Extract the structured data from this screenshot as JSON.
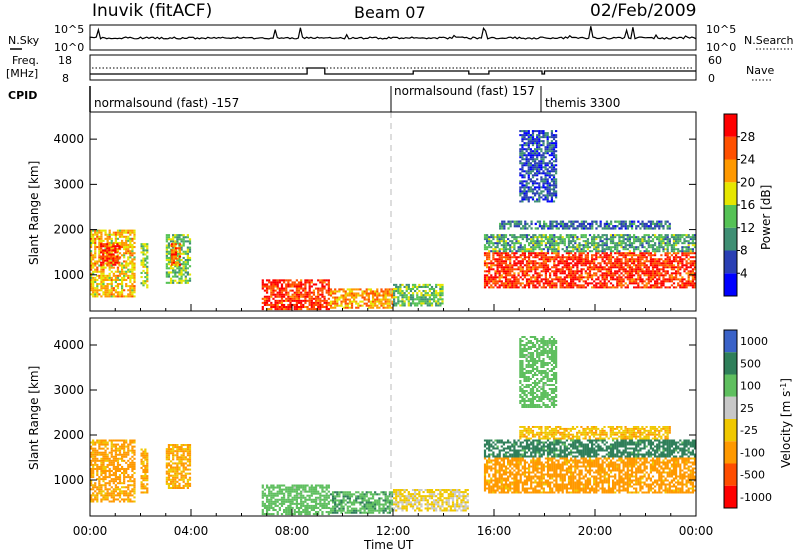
{
  "header": {
    "station": "Inuvik (fitACF)",
    "beam": "Beam 07",
    "date": "02/Feb/2009"
  },
  "summary_panels": {
    "nsky": {
      "label": "N.Sky",
      "ticks": [
        "10^5",
        "10^0"
      ]
    },
    "nsearch": {
      "label": "N.Search",
      "ticks": [
        "10^5",
        "10^0"
      ]
    },
    "freq": {
      "label_line1": "Freq.",
      "label_line2": "[MHz]",
      "ticks": [
        "18",
        "8"
      ]
    },
    "nave": {
      "label": "Nave",
      "ticks": [
        "60",
        "0"
      ]
    },
    "cpid": {
      "label": "CPID",
      "segments": [
        {
          "name": "normalsound (fast) -157",
          "start_hour": 0,
          "end_hour": 12
        },
        {
          "name": "normalsound (fast) 157",
          "start_hour": 12,
          "end_hour": 18
        },
        {
          "name": "themis 3300",
          "start_hour": 18,
          "end_hour": 24
        }
      ]
    }
  },
  "colors": {
    "power_scale": [
      "#0000ff",
      "#2a3fb4",
      "#3f8f74",
      "#55c255",
      "#e6e600",
      "#ff9900",
      "#ff5000",
      "#ff0000"
    ],
    "velocity_scale": [
      "#3a62c8",
      "#2f7f5a",
      "#5fbf5f",
      "#c8c8c8",
      "#f0c800",
      "#ff9900",
      "#ff4d00",
      "#ff0000"
    ],
    "background": "#ffffff"
  },
  "chart_data": [
    {
      "type": "heatmap",
      "panel": "power",
      "ylabel": "Slant Range [km]",
      "xlabel": "",
      "x_ticks": [
        "00:00",
        "04:00",
        "08:00",
        "12:00",
        "16:00",
        "20:00",
        "00:00"
      ],
      "y_ticks": [
        "1000",
        "2000",
        "3000",
        "4000"
      ],
      "ylim": [
        200,
        4600
      ],
      "xlim": [
        0,
        24
      ],
      "colorbar": {
        "label": "Power [dB]",
        "ticks": [
          "4",
          "8",
          "12",
          "16",
          "20",
          "24",
          "28"
        ],
        "range": [
          0,
          32
        ]
      },
      "regions": [
        {
          "t0": 0.0,
          "t1": 1.8,
          "r0": 500,
          "r1": 2000,
          "level": 20
        },
        {
          "t0": 0.4,
          "t1": 1.2,
          "r0": 1200,
          "r1": 1700,
          "level": 28
        },
        {
          "t0": 2.0,
          "t1": 2.3,
          "r0": 700,
          "r1": 1700,
          "level": 16
        },
        {
          "t0": 3.0,
          "t1": 4.0,
          "r0": 800,
          "r1": 1900,
          "level": 14
        },
        {
          "t0": 3.2,
          "t1": 3.6,
          "r0": 1200,
          "r1": 1700,
          "level": 24
        },
        {
          "t0": 6.8,
          "t1": 9.5,
          "r0": 220,
          "r1": 900,
          "level": 28
        },
        {
          "t0": 9.5,
          "t1": 12.0,
          "r0": 250,
          "r1": 700,
          "level": 22
        },
        {
          "t0": 12.0,
          "t1": 14.0,
          "r0": 300,
          "r1": 800,
          "level": 14
        },
        {
          "t0": 15.6,
          "t1": 24.0,
          "r0": 700,
          "r1": 1500,
          "level": 28
        },
        {
          "t0": 15.6,
          "t1": 24.0,
          "r0": 1500,
          "r1": 1900,
          "level": 12
        },
        {
          "t0": 16.2,
          "t1": 23.0,
          "r0": 2000,
          "r1": 2200,
          "level": 8
        },
        {
          "t0": 17.0,
          "t1": 18.5,
          "r0": 2600,
          "r1": 4200,
          "level": 6
        }
      ]
    },
    {
      "type": "heatmap",
      "panel": "velocity",
      "ylabel": "Slant Range [km]",
      "xlabel": "Time UT",
      "x_ticks": [
        "00:00",
        "04:00",
        "08:00",
        "12:00",
        "16:00",
        "20:00",
        "00:00"
      ],
      "y_ticks": [
        "1000",
        "2000",
        "3000",
        "4000"
      ],
      "ylim": [
        200,
        4600
      ],
      "xlim": [
        0,
        24
      ],
      "colorbar": {
        "label": "Velocity [m s^-1]",
        "ticks": [
          "1000",
          "500",
          "100",
          "25",
          "-25",
          "-100",
          "-500",
          "-1000"
        ]
      },
      "regions": [
        {
          "t0": 0.0,
          "t1": 1.8,
          "r0": 500,
          "r1": 1900,
          "level": -150
        },
        {
          "t0": 2.0,
          "t1": 2.3,
          "r0": 700,
          "r1": 1700,
          "level": -150
        },
        {
          "t0": 3.0,
          "t1": 4.0,
          "r0": 800,
          "r1": 1800,
          "level": -120
        },
        {
          "t0": 6.8,
          "t1": 9.5,
          "r0": 220,
          "r1": 900,
          "level": 60
        },
        {
          "t0": 9.5,
          "t1": 12.0,
          "r0": 250,
          "r1": 750,
          "level": 80
        },
        {
          "t0": 12.0,
          "t1": 15.0,
          "r0": 300,
          "r1": 800,
          "level": -30
        },
        {
          "t0": 15.6,
          "t1": 24.0,
          "r0": 700,
          "r1": 1500,
          "level": -200
        },
        {
          "t0": 15.6,
          "t1": 24.0,
          "r0": 1500,
          "r1": 1900,
          "level": 200
        },
        {
          "t0": 17.0,
          "t1": 23.0,
          "r0": 1900,
          "r1": 2200,
          "level": -80
        },
        {
          "t0": 17.0,
          "t1": 18.5,
          "r0": 2600,
          "r1": 4200,
          "level": 60
        }
      ]
    }
  ]
}
